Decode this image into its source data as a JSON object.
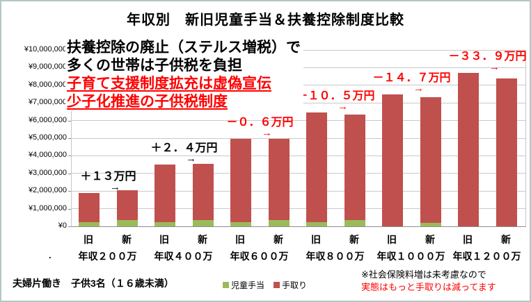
{
  "title": "年収別　新旧児童手当＆扶養控除制度比較",
  "overlay": {
    "line1": "扶養控除の廃止（ステルス増税）で",
    "line2": "多くの世帯は子供税を負担",
    "line3": "子育て支援制度拡充は虚偽宣伝",
    "line4": "少子化推進の子供税制度"
  },
  "footer": {
    "dot": ".",
    "household": "夫婦片働き　子供3名（１６歳未満）",
    "note1": "※社会保険料増は未考慮なので",
    "note2": "実態はもっと手取りは減ってます"
  },
  "colors": {
    "child_allowance": "#9BBB59",
    "take_home": "#C0504D",
    "negative_text": "#FF0000",
    "positive_text": "#000000",
    "gridline": "#C9C9C9"
  },
  "chart_data": {
    "type": "bar",
    "stacked": true,
    "grid": true,
    "arrow": "→",
    "ymax": 10000000,
    "ylim": [
      0,
      10000000
    ],
    "bar_labels": [
      "旧",
      "新"
    ],
    "y_ticks": [
      {
        "label": "¥10,000,000",
        "value": 10000000
      },
      {
        "label": "¥9,000,000",
        "value": 9000000
      },
      {
        "label": "¥8,000,000",
        "value": 8000000
      },
      {
        "label": "¥7,000,000",
        "value": 7000000
      },
      {
        "label": "¥6,000,000",
        "value": 6000000
      },
      {
        "label": "¥5,000,000",
        "value": 5000000
      },
      {
        "label": "¥4,000,000",
        "value": 4000000
      },
      {
        "label": "¥3,000,000",
        "value": 3000000
      },
      {
        "label": "¥2,000,000",
        "value": 2000000
      },
      {
        "label": "¥1,000,000",
        "value": 1000000
      },
      {
        "label": "¥0",
        "value": 0
      }
    ],
    "series": [
      {
        "key": "child_allowance",
        "name": "児童手当",
        "color": "#9BBB59"
      },
      {
        "key": "take_home",
        "name": "手取り",
        "color": "#C0504D"
      }
    ],
    "groups": [
      {
        "label": "年収２００万",
        "old": {
          "child_allowance": 240000,
          "take_home": 1660000
        },
        "new": {
          "child_allowance": 360000,
          "take_home": 1670000
        },
        "diff": "＋１３万円",
        "diff_positive": true
      },
      {
        "label": "年収４００万",
        "old": {
          "child_allowance": 240000,
          "take_home": 3280000
        },
        "new": {
          "child_allowance": 360000,
          "take_home": 3184000
        },
        "diff": "＋２．４万円",
        "diff_positive": true
      },
      {
        "label": "年収６００万",
        "old": {
          "child_allowance": 240000,
          "take_home": 4720000
        },
        "new": {
          "child_allowance": 360000,
          "take_home": 4594000
        },
        "diff": "－０．６万円",
        "diff_positive": false
      },
      {
        "label": "年収８００万",
        "old": {
          "child_allowance": 240000,
          "take_home": 6200000
        },
        "new": {
          "child_allowance": 360000,
          "take_home": 5975000
        },
        "diff": "－１０．５万円",
        "diff_positive": false
      },
      {
        "label": "年収１０００万",
        "old": {
          "child_allowance": 0,
          "take_home": 7480000
        },
        "new": {
          "child_allowance": 180000,
          "take_home": 7153000
        },
        "diff": "－１４．７万円",
        "diff_positive": false
      },
      {
        "label": "年収１２００万",
        "old": {
          "child_allowance": 0,
          "take_home": 8720000
        },
        "new": {
          "child_allowance": 0,
          "take_home": 8381000
        },
        "diff": "－３３．９万円",
        "diff_positive": false
      }
    ]
  }
}
